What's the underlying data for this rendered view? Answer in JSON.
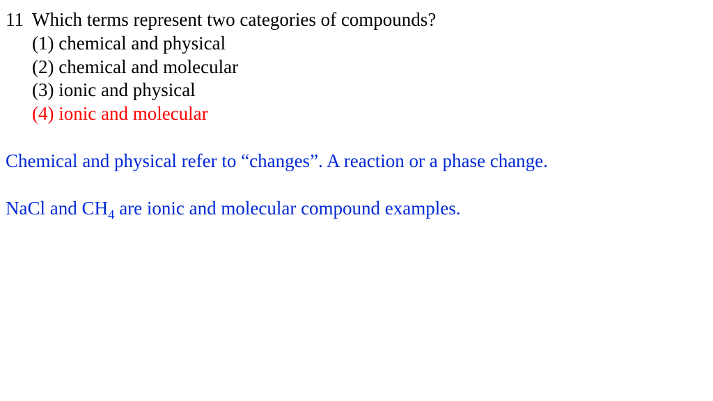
{
  "question": {
    "number": "11",
    "text": "Which terms represent two categories of compounds?",
    "choices": [
      {
        "label": "(1) chemical and physical",
        "correct": false
      },
      {
        "label": "(2) chemical and molecular",
        "correct": false
      },
      {
        "label": "(3) ionic and physical",
        "correct": false
      },
      {
        "label": "(4) ionic and molecular",
        "correct": true
      }
    ]
  },
  "explanation": {
    "line1": "Chemical and physical refer to “changes”.  A reaction or a phase change.",
    "line2_pre": "NaCl and CH",
    "line2_sub": "4",
    "line2_post": " are ionic and molecular compound examples."
  },
  "colors": {
    "text": "#000000",
    "correct": "#ff0000",
    "explanation": "#0029d6",
    "background": "#ffffff"
  },
  "font": {
    "family": "Times New Roman",
    "size_pt": 20
  }
}
